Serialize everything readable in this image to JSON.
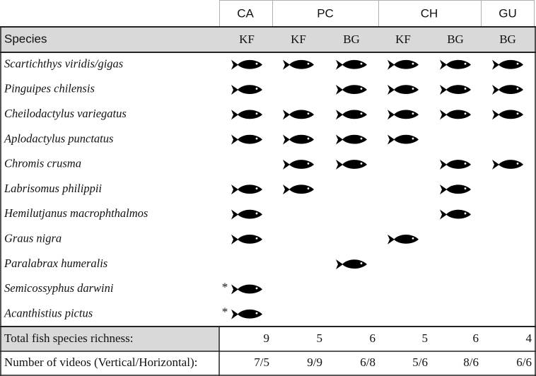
{
  "header": {
    "species": "Species",
    "groups": [
      "CA",
      "PC",
      "CH",
      "GU"
    ],
    "columns": [
      "KF",
      "KF",
      "BG",
      "KF",
      "BG",
      "BG"
    ]
  },
  "rows": [
    {
      "species": "Scartichthys viridis/gigas",
      "presence": [
        true,
        true,
        true,
        true,
        true,
        true
      ]
    },
    {
      "species": "Pinguipes chilensis",
      "presence": [
        true,
        false,
        true,
        true,
        true,
        true
      ]
    },
    {
      "species": "Cheilodactylus variegatus",
      "presence": [
        true,
        true,
        true,
        true,
        true,
        true
      ]
    },
    {
      "species": "Aplodactylus punctatus",
      "presence": [
        true,
        true,
        true,
        true,
        false,
        false
      ]
    },
    {
      "species": "Chromis crusma",
      "presence": [
        false,
        true,
        true,
        false,
        true,
        true
      ]
    },
    {
      "species": "Labrisomus philippii",
      "presence": [
        true,
        true,
        false,
        false,
        true,
        false
      ]
    },
    {
      "species": "Hemilutjanus macrophthalmos",
      "presence": [
        true,
        false,
        false,
        false,
        true,
        false
      ]
    },
    {
      "species": "Graus nigra",
      "presence": [
        true,
        false,
        false,
        true,
        false,
        false
      ]
    },
    {
      "species": "Paralabrax humeralis",
      "presence": [
        false,
        false,
        true,
        false,
        false,
        false
      ]
    },
    {
      "species": "Semicossyphus darwini",
      "note": "*",
      "presence": [
        true,
        false,
        false,
        false,
        false,
        false
      ]
    },
    {
      "species": "Acanthistius pictus",
      "note": "*",
      "presence": [
        true,
        false,
        false,
        false,
        false,
        false
      ]
    }
  ],
  "totals": {
    "label": "Total fish species richness:",
    "values": [
      9,
      5,
      6,
      5,
      6,
      4
    ]
  },
  "videos": {
    "label": "Number of videos (Vertical/Horizontal):",
    "values": [
      "7/5",
      "9/9",
      "6/8",
      "5/6",
      "8/6",
      "6/6"
    ]
  }
}
